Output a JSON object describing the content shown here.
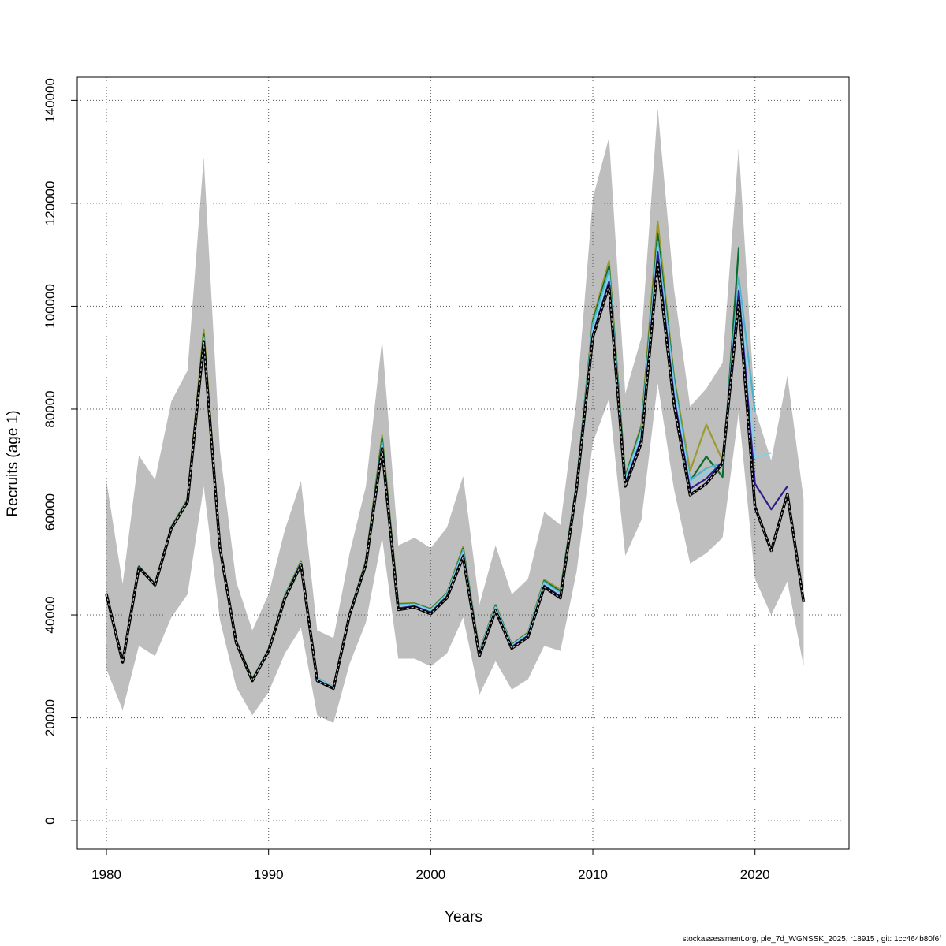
{
  "chart_data": {
    "type": "line",
    "title": "",
    "xlabel": "Years",
    "ylabel": "Recruits (age 1)",
    "xlim": [
      1978.2,
      2025.8
    ],
    "ylim": [
      -5500,
      144500
    ],
    "x_ticks": [
      1980,
      1990,
      2000,
      2010,
      2020
    ],
    "y_ticks": [
      0,
      20000,
      40000,
      60000,
      80000,
      100000,
      120000,
      140000
    ],
    "grid": true,
    "legend": "none",
    "confidence_band": {
      "color": "#bebebe",
      "x": [
        1980,
        1981,
        1982,
        1983,
        1984,
        1985,
        1986,
        1987,
        1988,
        1989,
        1990,
        1991,
        1992,
        1993,
        1994,
        1995,
        1996,
        1997,
        1998,
        1999,
        2000,
        2001,
        2002,
        2003,
        2004,
        2005,
        2006,
        2007,
        2008,
        2009,
        2010,
        2011,
        2012,
        2013,
        2014,
        2015,
        2016,
        2017,
        2018,
        2019,
        2020,
        2021,
        2022,
        2023
      ],
      "upper": [
        66000,
        46000,
        71000,
        66300,
        81500,
        87500,
        129000,
        72000,
        46500,
        37000,
        44000,
        56500,
        66000,
        37000,
        35500,
        52000,
        65000,
        93500,
        53500,
        55000,
        53000,
        57000,
        67000,
        42000,
        53500,
        44000,
        47000,
        60000,
        57500,
        82000,
        121000,
        132800,
        83000,
        94000,
        138500,
        103500,
        80500,
        84000,
        89000,
        131000,
        80000,
        70000,
        86500,
        62500
      ],
      "lower": [
        29500,
        21500,
        34000,
        32000,
        39500,
        44000,
        65000,
        39000,
        26000,
        20500,
        25000,
        32500,
        37500,
        20500,
        19000,
        30500,
        38500,
        55000,
        31500,
        31500,
        30000,
        32500,
        39500,
        24500,
        31000,
        25500,
        27500,
        34000,
        33000,
        48500,
        73500,
        82000,
        51500,
        58500,
        85000,
        64500,
        50000,
        52000,
        55000,
        79500,
        47000,
        40000,
        46500,
        30000
      ]
    },
    "series": [
      {
        "color": "#000000",
        "dashed": true,
        "x": [
          1980,
          1981,
          1982,
          1983,
          1984,
          1985,
          1986,
          1987,
          1988,
          1989,
          1990,
          1991,
          1992,
          1993,
          1994,
          1995,
          1996,
          1997,
          1998,
          1999,
          2000,
          2001,
          2002,
          2003,
          2004,
          2005,
          2006,
          2007,
          2008,
          2009,
          2010,
          2011,
          2012,
          2013,
          2014,
          2015,
          2016,
          2017,
          2018,
          2019,
          2020,
          2021,
          2022,
          2023
        ],
        "values": [
          44000,
          30800,
          49200,
          45800,
          56800,
          62000,
          93000,
          53000,
          34600,
          27200,
          33000,
          43200,
          49800,
          27200,
          25700,
          40000,
          49800,
          72300,
          41000,
          41500,
          40200,
          43300,
          51300,
          32000,
          40800,
          33500,
          35700,
          45400,
          43300,
          64700,
          94000,
          104000,
          65000,
          73500,
          108500,
          81000,
          63300,
          65500,
          69500,
          101000,
          61000,
          52500,
          63500,
          42500
        ]
      },
      {
        "color": "#2f1d8c",
        "dashed": false,
        "x": [
          1980,
          1981,
          1982,
          1983,
          1984,
          1985,
          1986,
          1987,
          1988,
          1989,
          1990,
          1991,
          1992,
          1993,
          1994,
          1995,
          1996,
          1997,
          1998,
          1999,
          2000,
          2001,
          2002,
          2003,
          2004,
          2005,
          2006,
          2007,
          2008,
          2009,
          2010,
          2011,
          2012,
          2013,
          2014,
          2015,
          2016,
          2017,
          2018,
          2019,
          2020,
          2021,
          2022
        ],
        "values": [
          44100,
          30900,
          49300,
          45900,
          56900,
          62100,
          93300,
          53100,
          34700,
          27300,
          33100,
          43300,
          49900,
          27300,
          25800,
          40100,
          50000,
          72500,
          41300,
          41700,
          40500,
          43600,
          51600,
          32300,
          41100,
          33800,
          36000,
          45700,
          43600,
          65000,
          94500,
          104800,
          65500,
          74200,
          110500,
          82500,
          64500,
          66500,
          69800,
          103000,
          65500,
          60500,
          65000
        ]
      },
      {
        "color": "#87ceeb",
        "dashed": false,
        "x": [
          1980,
          1981,
          1982,
          1983,
          1984,
          1985,
          1986,
          1987,
          1988,
          1989,
          1990,
          1991,
          1992,
          1993,
          1994,
          1995,
          1996,
          1997,
          1998,
          1999,
          2000,
          2001,
          2002,
          2003,
          2004,
          2005,
          2006,
          2007,
          2008,
          2009,
          2010,
          2011,
          2012,
          2013,
          2014,
          2015,
          2016,
          2017,
          2018,
          2019,
          2020,
          2021
        ],
        "values": [
          44150,
          30950,
          49350,
          45950,
          57000,
          62200,
          93600,
          53200,
          34800,
          27400,
          33200,
          43500,
          50100,
          27600,
          25900,
          40200,
          50200,
          72900,
          41800,
          42000,
          40900,
          43900,
          52100,
          32600,
          41400,
          34000,
          36300,
          46100,
          44000,
          65200,
          95500,
          106000,
          66000,
          75500,
          111500,
          84500,
          65500,
          67500,
          69300,
          104000,
          70500,
          71500
        ]
      },
      {
        "color": "#4bb3c9",
        "dashed": false,
        "x": [
          1980,
          1981,
          1982,
          1983,
          1984,
          1985,
          1986,
          1987,
          1988,
          1989,
          1990,
          1991,
          1992,
          1993,
          1994,
          1995,
          1996,
          1997,
          1998,
          1999,
          2000,
          2001,
          2002,
          2003,
          2004,
          2005,
          2006,
          2007,
          2008,
          2009,
          2010,
          2011,
          2012,
          2013,
          2014,
          2015,
          2016,
          2017,
          2018,
          2019,
          2020
        ],
        "values": [
          44200,
          31000,
          49400,
          46000,
          57050,
          62300,
          94000,
          53400,
          34900,
          27450,
          33250,
          43600,
          50200,
          27800,
          25950,
          40300,
          50300,
          73500,
          42000,
          42100,
          41000,
          44100,
          52600,
          32700,
          41600,
          34100,
          36400,
          46400,
          44300,
          65400,
          96500,
          107000,
          66500,
          76000,
          112500,
          85500,
          66200,
          68500,
          69500,
          105500,
          79500
        ]
      },
      {
        "color": "#0b6b2e",
        "dashed": false,
        "x": [
          1980,
          1981,
          1982,
          1983,
          1984,
          1985,
          1986,
          1987,
          1988,
          1989,
          1990,
          1991,
          1992,
          1993,
          1994,
          1995,
          1996,
          1997,
          1998,
          1999,
          2000,
          2001,
          2002,
          2003,
          2004,
          2005,
          2006,
          2007,
          2008,
          2009,
          2010,
          2011,
          2012,
          2013,
          2014,
          2015,
          2016,
          2017,
          2018,
          2019
        ],
        "values": [
          44250,
          31050,
          49450,
          46050,
          57100,
          62400,
          94500,
          53500,
          35000,
          27500,
          33300,
          43700,
          50300,
          27500,
          26000,
          40350,
          50400,
          74200,
          42100,
          42200,
          41100,
          44200,
          52900,
          32800,
          41800,
          34200,
          36500,
          46600,
          44600,
          65500,
          97000,
          107800,
          66800,
          76500,
          114000,
          86000,
          66000,
          70800,
          66800,
          111500
        ]
      },
      {
        "color": "#9a9a2e",
        "dashed": false,
        "x": [
          1980,
          1981,
          1982,
          1983,
          1984,
          1985,
          1986,
          1987,
          1988,
          1989,
          1990,
          1991,
          1992,
          1993,
          1994,
          1995,
          1996,
          1997,
          1998,
          1999,
          2000,
          2001,
          2002,
          2003,
          2004,
          2005,
          2006,
          2007,
          2008,
          2009,
          2010,
          2011,
          2012,
          2013,
          2014,
          2015,
          2016,
          2017,
          2018
        ],
        "values": [
          44300,
          31100,
          49500,
          46100,
          57200,
          62500,
          95500,
          53700,
          35100,
          27600,
          33350,
          43800,
          50500,
          27500,
          26050,
          40400,
          50600,
          74900,
          42200,
          42300,
          41200,
          44300,
          53300,
          32900,
          42000,
          34300,
          36600,
          46900,
          44900,
          65600,
          97500,
          108800,
          67000,
          77000,
          116500,
          86500,
          68000,
          77000,
          70000
        ]
      },
      {
        "color": "#3f9d2e",
        "dashed": false,
        "x": [
          1980,
          1981,
          1982,
          1983,
          1984,
          1985,
          1986,
          1987,
          1988,
          1989,
          1990,
          1991,
          1992,
          1993,
          1994,
          1995,
          1996,
          1997,
          1998,
          1999,
          2000,
          2001,
          2002,
          2003,
          2004,
          2005,
          2006,
          2007,
          2008,
          2009,
          2010,
          2011,
          2012,
          2013,
          2014,
          2015
        ],
        "values": [
          44200,
          31000,
          49400,
          46000,
          57100,
          62300,
          94800,
          53500,
          34900,
          27500,
          33300,
          43700,
          50300,
          27500,
          25950,
          40300,
          50400,
          74500,
          42000,
          42100,
          41000,
          44100,
          53000,
          32700,
          41800,
          34100,
          36400,
          46600,
          44500,
          65400,
          97000,
          108000,
          66800,
          76500,
          115000,
          86200
        ]
      }
    ]
  },
  "footer": "stockassessment.org, ple_7d_WGNSSK_2025, r18915 , git: 1cc464b80f6f"
}
